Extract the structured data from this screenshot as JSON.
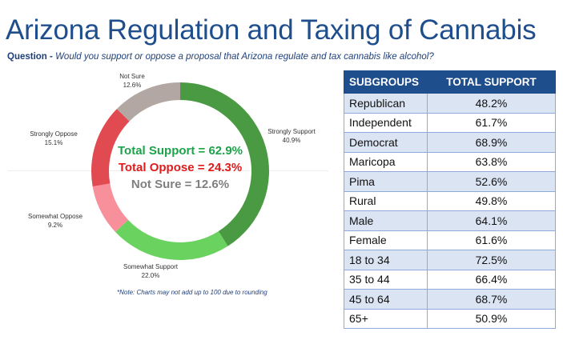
{
  "header": {
    "title": "Arizona Regulation and Taxing of Cannabis",
    "question_label": "Question - ",
    "question_text": "Would you support or oppose a proposal that Arizona regulate and tax cannabis like alcohol?"
  },
  "chart_data": {
    "type": "pie",
    "variant": "donut",
    "start": "top",
    "direction": "clockwise",
    "slices": [
      {
        "label": "Strongly Support",
        "value": 40.9,
        "value_label": "40.9%",
        "color": "#4a9a44"
      },
      {
        "label": "Somewhat Support",
        "value": 22.0,
        "value_label": "22.0%",
        "color": "#6ad25e"
      },
      {
        "label": "Somewhat Oppose",
        "value": 9.2,
        "value_label": "9.2%",
        "color": "#f7909a"
      },
      {
        "label": "Strongly Oppose",
        "value": 15.1,
        "value_label": "15.1%",
        "color": "#e04a50"
      },
      {
        "label": "Not Sure",
        "value": 12.6,
        "value_label": "12.6%",
        "color": "#b2a7a2"
      }
    ],
    "center_annotations": [
      {
        "text": "Total Support = 62.9%",
        "color": "#1ea24a"
      },
      {
        "text": "Total Oppose = 24.3%",
        "color": "#e01b1b"
      },
      {
        "text": "Not Sure = 12.6%",
        "color": "#7f7f7f"
      }
    ],
    "note": "*Note: Charts may not add up to 100 due to rounding"
  },
  "table": {
    "headers": [
      "SUBGROUPS",
      "TOTAL SUPPORT"
    ],
    "rows": [
      [
        "Republican",
        "48.2%"
      ],
      [
        "Independent",
        "61.7%"
      ],
      [
        "Democrat",
        "68.9%"
      ],
      [
        "Maricopa",
        "63.8%"
      ],
      [
        "Pima",
        "52.6%"
      ],
      [
        "Rural",
        "49.8%"
      ],
      [
        "Male",
        "64.1%"
      ],
      [
        "Female",
        "61.6%"
      ],
      [
        "18 to 34",
        "72.5%"
      ],
      [
        "35 to 44",
        "66.4%"
      ],
      [
        "45 to 64",
        "68.7%"
      ],
      [
        "65+",
        "50.9%"
      ]
    ],
    "header_color": "#1f4e8c",
    "band_color": "#dbe4f2"
  }
}
